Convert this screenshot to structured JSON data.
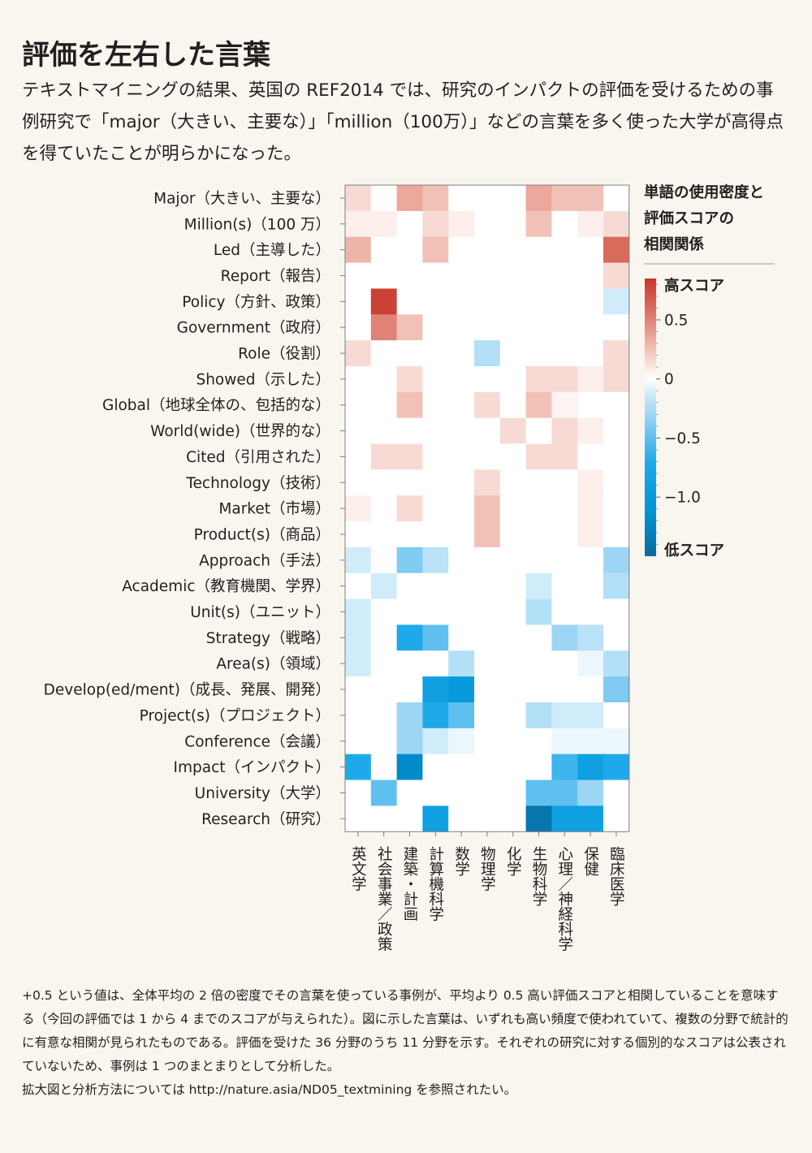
{
  "title": "評価を左右した言葉",
  "lead": "テキストマイニングの結果、英国の REF2014 では、研究のインパクトの評価を受けるための事例研究で「major（大きい、主要な）」「million（100万）」などの言葉を多く使った大学が高得点を得ていたことが明らかになった。",
  "legend": {
    "title_lines": [
      "単語の使用密度と",
      "評価スコアの",
      "相関関係"
    ],
    "high_label": "高スコア",
    "low_label": "低スコア",
    "ticks": [
      "0.5",
      "0",
      "−0.5",
      "−1.0"
    ],
    "tick_values": [
      0.5,
      0,
      -0.5,
      -1.0
    ],
    "range": [
      -1.5,
      0.85
    ]
  },
  "notes": [
    "+0.5 という値は、全体平均の 2 倍の密度でその言葉を使っている事例が、平均より 0.5 高い評価スコアと相関していることを意味する（今回の評価では 1 から 4 までのスコアが与えられた）。図に示した言葉は、いずれも高い頻度で使われていて、複数の分野で統計的に有意な相関が見られたものである。評価を受けた 36 分野のうち 11 分野を示す。それぞれの研究に対する個別的なスコアは公表されていないため、事例は 1 つのまとまりとして分析した。",
    "拡大図と分析方法については http://nature.asia/ND05_textmining を参照されたい。"
  ],
  "chart_data": {
    "type": "heatmap",
    "rows": [
      "Major（大きい、主要な）",
      "Million(s)（100 万）",
      "Led（主導した）",
      "Report（報告）",
      "Policy（方針、政策）",
      "Government（政府）",
      "Role（役割）",
      "Showed（示した）",
      "Global（地球全体の、包括的な）",
      "World(wide)（世界的な）",
      "Cited（引用された）",
      "Technology（技術）",
      "Market（市場）",
      "Product(s)（商品）",
      "Approach（手法）",
      "Academic（教育機関、学界）",
      "Unit(s)（ユニット）",
      "Strategy（戦略）",
      "Area(s)（領域）",
      "Develop(ed/ment)（成長、発展、開発）",
      "Project(s)（プロジェクト）",
      "Conference（会議）",
      "Impact（インパクト）",
      "University（大学）",
      "Research（研究）"
    ],
    "columns": [
      "英文学",
      "社会事業／政策",
      "建築・計画",
      "計算機科学",
      "数学",
      "物理学",
      "化学",
      "生物科学",
      "心理／神経科学",
      "保健",
      "臨床医学"
    ],
    "values": [
      [
        0.15,
        0,
        0.35,
        0.25,
        0,
        0,
        0,
        0.35,
        0.25,
        0.25,
        0
      ],
      [
        0.07,
        0.07,
        0,
        0.15,
        0.07,
        0,
        0,
        0.25,
        0,
        0.07,
        0.15
      ],
      [
        0.3,
        0,
        0,
        0.25,
        0,
        0,
        0,
        0,
        0,
        0,
        0.6
      ],
      [
        0,
        0,
        0,
        0,
        0,
        0,
        0,
        0,
        0,
        0,
        0.15
      ],
      [
        0,
        0.8,
        0,
        0,
        0,
        0,
        0,
        0,
        0,
        0,
        -0.12
      ],
      [
        0,
        0.5,
        0.25,
        0,
        0,
        0,
        0,
        0,
        0,
        0,
        0
      ],
      [
        0.15,
        0,
        0,
        0,
        0,
        -0.22,
        0,
        0,
        0,
        0,
        0.15
      ],
      [
        0,
        0,
        0.15,
        0,
        0,
        0,
        0,
        0.15,
        0.15,
        0.07,
        0.15
      ],
      [
        0,
        0,
        0.25,
        0,
        0,
        0.15,
        0,
        0.25,
        0.05,
        0,
        0
      ],
      [
        0,
        0,
        0,
        0,
        0,
        0,
        0.15,
        0,
        0.15,
        0.07,
        0
      ],
      [
        0,
        0.15,
        0.15,
        0,
        0,
        0,
        0,
        0.15,
        0.15,
        0,
        0
      ],
      [
        0,
        0,
        0,
        0,
        0,
        0.15,
        0,
        0,
        0,
        0.07,
        0
      ],
      [
        0.07,
        0,
        0.15,
        0,
        0,
        0.25,
        0,
        0,
        0,
        0.07,
        0
      ],
      [
        0,
        0,
        0,
        0,
        0,
        0.25,
        0,
        0,
        0,
        0.07,
        0
      ],
      [
        -0.12,
        0,
        -0.4,
        -0.2,
        0,
        0,
        0,
        0,
        0,
        0,
        -0.3
      ],
      [
        0,
        -0.12,
        0,
        0,
        0,
        0,
        0,
        -0.12,
        0,
        0,
        -0.22
      ],
      [
        -0.12,
        0,
        0,
        0,
        0,
        0,
        0,
        -0.22,
        0,
        0,
        0
      ],
      [
        -0.12,
        0,
        -0.7,
        -0.5,
        0,
        0,
        0,
        0,
        -0.3,
        -0.2,
        0
      ],
      [
        -0.12,
        0,
        0,
        0,
        -0.22,
        0,
        0,
        0,
        0,
        -0.05,
        -0.22
      ],
      [
        0,
        0,
        0,
        -0.9,
        -1.0,
        0,
        0,
        0,
        0,
        0,
        -0.4
      ],
      [
        0,
        0,
        -0.3,
        -0.7,
        -0.5,
        0,
        0,
        -0.22,
        -0.12,
        -0.12,
        0
      ],
      [
        0,
        0,
        -0.3,
        -0.12,
        -0.05,
        0,
        0,
        0,
        -0.05,
        -0.05,
        -0.05
      ],
      [
        -0.7,
        0,
        -1.2,
        0,
        0,
        0,
        0,
        0,
        -0.6,
        -0.9,
        -0.7
      ],
      [
        0,
        -0.5,
        0,
        0,
        0,
        0,
        0,
        -0.5,
        -0.5,
        -0.3,
        0
      ],
      [
        0,
        0,
        0,
        -0.9,
        0,
        0,
        0,
        -1.4,
        -0.9,
        -0.9,
        0
      ]
    ]
  },
  "colors": {
    "background": "#f8f6ee",
    "cell_empty": "#ffffff",
    "grid": "#7d7d7d",
    "scale_stops": [
      {
        "v": -1.5,
        "c": "#0a6b9e"
      },
      {
        "v": -1.1,
        "c": "#0095d8"
      },
      {
        "v": -0.7,
        "c": "#1eaaea"
      },
      {
        "v": -0.35,
        "c": "#8fd0f3"
      },
      {
        "v": -0.1,
        "c": "#d6eefb"
      },
      {
        "v": 0,
        "c": "#ffffff"
      },
      {
        "v": 0.1,
        "c": "#fbe6e2"
      },
      {
        "v": 0.35,
        "c": "#eba89c"
      },
      {
        "v": 0.6,
        "c": "#d96b5c"
      },
      {
        "v": 0.85,
        "c": "#c8362b"
      }
    ]
  }
}
